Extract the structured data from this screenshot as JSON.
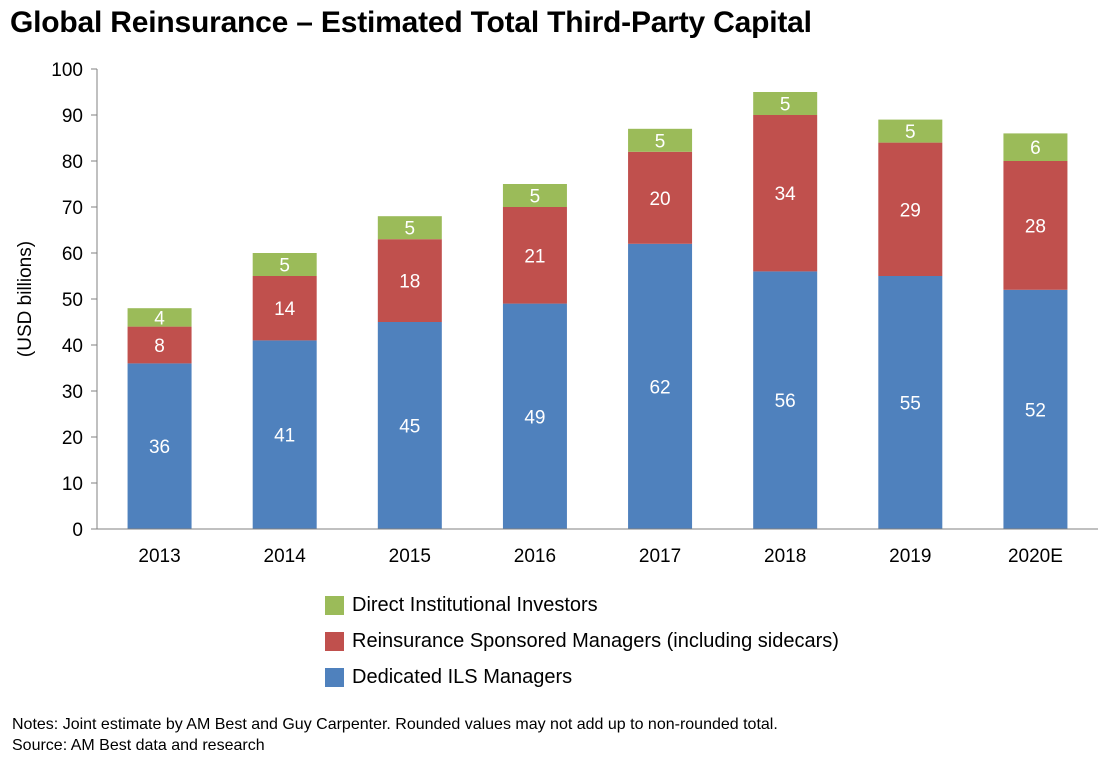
{
  "title": "Global Reinsurance – Estimated Total Third-Party Capital",
  "chart_data": {
    "type": "bar",
    "stacked": true,
    "title": "Global Reinsurance – Estimated Total Third-Party Capital",
    "xlabel": "",
    "ylabel": "(USD billions)",
    "ylim": [
      0,
      100
    ],
    "yticks": [
      0,
      10,
      20,
      30,
      40,
      50,
      60,
      70,
      80,
      90,
      100
    ],
    "categories": [
      "2013",
      "2014",
      "2015",
      "2016",
      "2017",
      "2018",
      "2019",
      "2020E"
    ],
    "grid": false,
    "legend_position": "bottom",
    "series": [
      {
        "name": "Dedicated ILS Managers",
        "color": "#4f81bd",
        "values": [
          36,
          41,
          45,
          49,
          62,
          56,
          55,
          52
        ],
        "labels": [
          "36",
          "41",
          "45",
          "49",
          "62",
          "56",
          "55",
          "52"
        ]
      },
      {
        "name": "Reinsurance Sponsored Managers (including sidecars)",
        "color": "#c0504d",
        "values": [
          8,
          14,
          18,
          21,
          20,
          34,
          29,
          28
        ],
        "labels": [
          "8",
          "14",
          "18",
          "21",
          "20",
          "34",
          "29",
          "28"
        ]
      },
      {
        "name": "Direct Institutional Investors",
        "color": "#9bbb59",
        "values": [
          4,
          5,
          5,
          5,
          5,
          5,
          5,
          6
        ],
        "labels": [
          "4",
          "5",
          "5",
          "5",
          "5",
          "5",
          "5",
          "6"
        ]
      }
    ]
  },
  "legend": [
    {
      "label": "Direct Institutional Investors",
      "color": "#9bbb59"
    },
    {
      "label": "Reinsurance Sponsored Managers (including sidecars)",
      "color": "#c0504d"
    },
    {
      "label": "Dedicated ILS Managers",
      "color": "#4f81bd"
    }
  ],
  "notes": {
    "line1": "Notes: Joint estimate by AM Best and Guy Carpenter. Rounded values may not add up to non-rounded total.",
    "line2": "Source: AM Best data and research"
  }
}
